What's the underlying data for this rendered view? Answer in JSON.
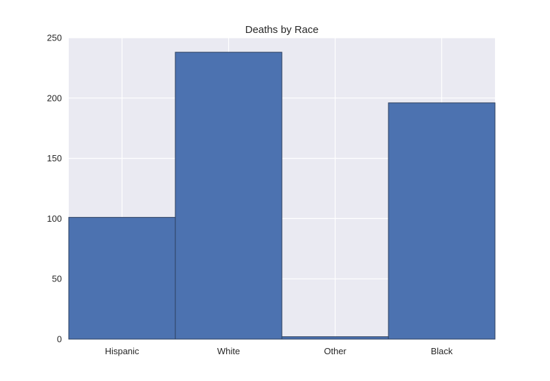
{
  "chart_data": {
    "type": "bar",
    "title": "Deaths by Race",
    "xlabel": "",
    "ylabel": "",
    "categories": [
      "Hispanic",
      "White",
      "Other",
      "Black"
    ],
    "values": [
      101,
      238,
      2,
      196
    ],
    "ylim": [
      0,
      250
    ],
    "yticks": [
      0,
      50,
      100,
      150,
      200,
      250
    ],
    "grid": true,
    "legend": "none",
    "colors": {
      "bar": "#4c72b0",
      "bar_edge": "#2b3e5c",
      "plot_background": "#eaeaf2",
      "grid": "#ffffff",
      "text": "#262626"
    }
  }
}
